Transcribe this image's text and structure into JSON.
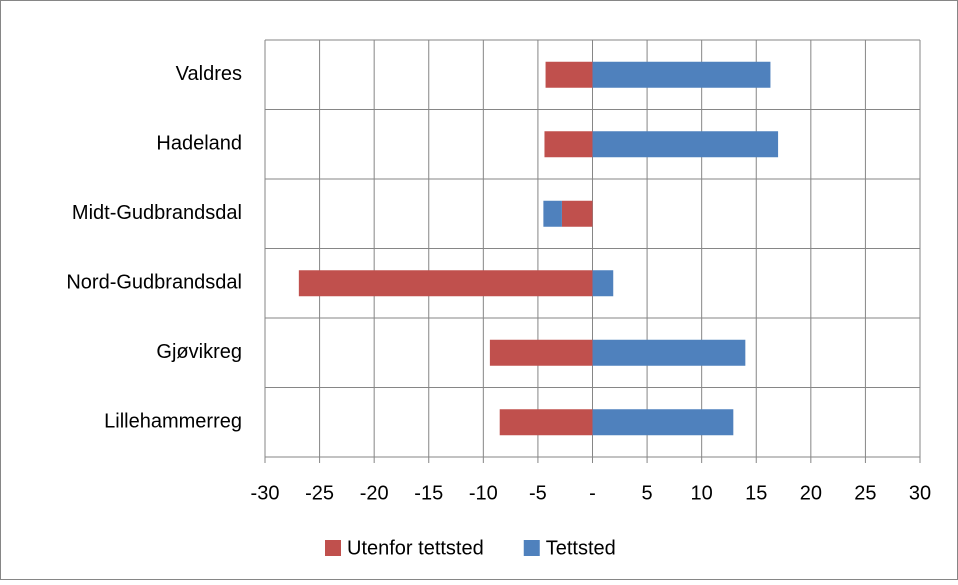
{
  "chart_data": {
    "type": "bar",
    "orientation": "horizontal",
    "stacked": true,
    "categories": [
      "Valdres",
      "Hadeland",
      "Midt-Gudbrandsdal",
      "Nord-Gudbrandsdal",
      "Gjøvikreg",
      "Lillehammerreg"
    ],
    "series": [
      {
        "name": "Utenfor tettsted",
        "color": "#c0504d",
        "values": [
          -4.3,
          -4.4,
          -2.8,
          -26.9,
          -9.4,
          -8.5
        ]
      },
      {
        "name": "Tettsted",
        "color": "#4f81bd",
        "values": [
          16.3,
          17.0,
          -1.7,
          1.9,
          14.0,
          12.9
        ]
      }
    ],
    "xlim": [
      -30,
      30
    ],
    "xticks": [
      -30,
      -25,
      -20,
      -15,
      -10,
      -5,
      {
        "value": 0,
        "label": "-"
      },
      5,
      10,
      15,
      20,
      25,
      30
    ],
    "grid": true,
    "legend": "bottom"
  }
}
